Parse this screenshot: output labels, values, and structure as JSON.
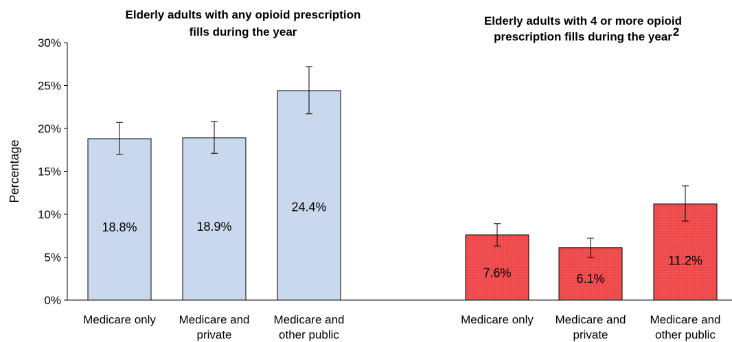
{
  "chart_data": {
    "type": "bar",
    "ylabel": "Percentage",
    "ylim": [
      0,
      30
    ],
    "yticks": [
      "0%",
      "5%",
      "10%",
      "15%",
      "20%",
      "25%",
      "30%"
    ],
    "grid": false,
    "panels": [
      {
        "title_lines": [
          "Elderly adults with any opioid prescription",
          "fills during the year"
        ],
        "categories": [
          [
            "Medicare only"
          ],
          [
            "Medicare and",
            "private"
          ],
          [
            "Medicare and",
            "other public"
          ]
        ],
        "values": [
          18.8,
          18.9,
          24.4
        ],
        "value_labels": [
          "18.8%",
          "18.9%",
          "24.4%"
        ],
        "error_low": [
          17.0,
          17.1,
          21.7
        ],
        "error_high": [
          20.7,
          20.8,
          27.2
        ],
        "color": "#c9d8ec"
      },
      {
        "title_lines": [
          "Elderly adults with 4 or more opioid",
          "prescription fills during the year"
        ],
        "title_superscript": "2",
        "categories": [
          [
            "Medicare only"
          ],
          [
            "Medicare and",
            "private"
          ],
          [
            "Medicare and",
            "other public"
          ]
        ],
        "values": [
          7.6,
          6.1,
          11.2
        ],
        "value_labels": [
          "7.6%",
          "6.1%",
          "11.2%"
        ],
        "error_low": [
          6.3,
          5.0,
          9.2
        ],
        "error_high": [
          8.9,
          7.2,
          13.3
        ],
        "color": "#f04b4d"
      }
    ]
  }
}
